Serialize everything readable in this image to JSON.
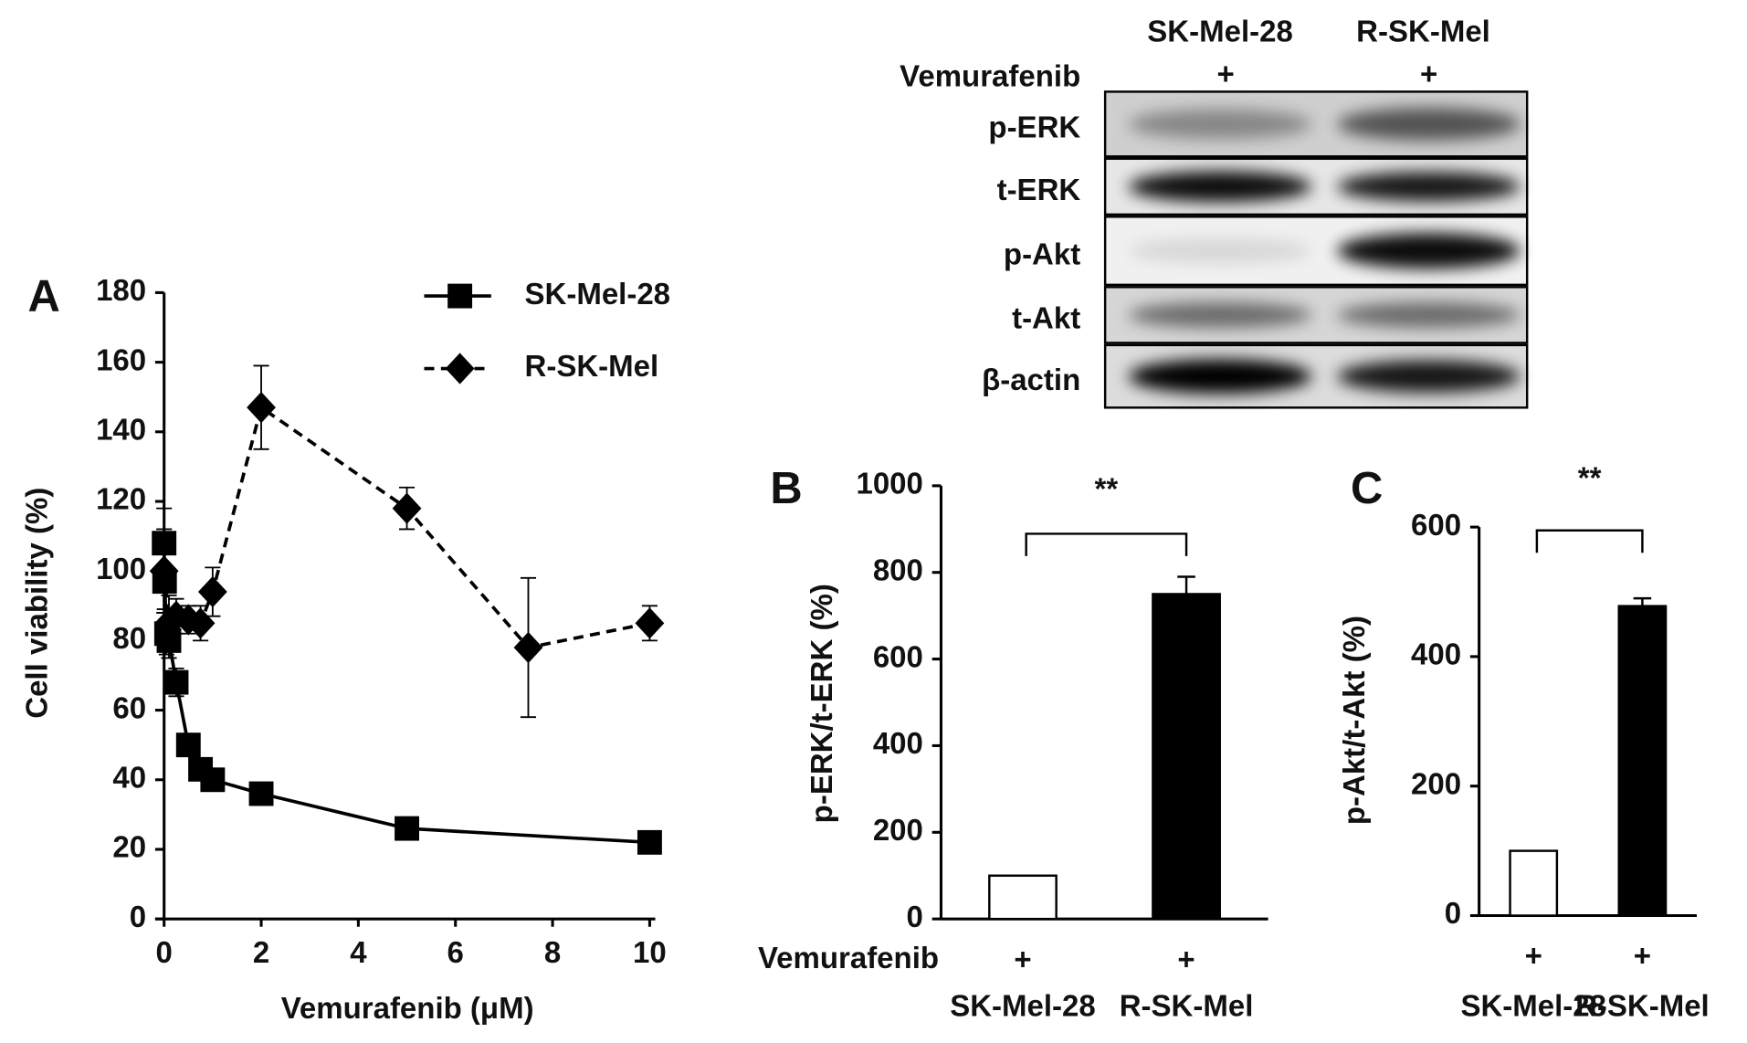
{
  "chart_data": [
    {
      "type": "line",
      "panel_label": "A",
      "xlabel": "Vemurafenib (μM)",
      "ylabel": "Cell viability (%)",
      "xlim": [
        0,
        10
      ],
      "xticks": [
        0,
        2,
        4,
        6,
        8,
        10
      ],
      "ylim": [
        0,
        180
      ],
      "yticks": [
        0,
        20,
        40,
        60,
        80,
        100,
        120,
        140,
        160,
        180
      ],
      "series": [
        {
          "name": "SK-Mel-28",
          "color": "#000000",
          "marker": "square",
          "linestyle": "solid",
          "x": [
            0,
            0.01,
            0.05,
            0.1,
            0.25,
            0.5,
            0.75,
            1,
            2,
            5,
            10
          ],
          "values": [
            108,
            97,
            82,
            80,
            68,
            50,
            43,
            40,
            36,
            26,
            22
          ],
          "errors": [
            10,
            8,
            6,
            5,
            4,
            3,
            3,
            3,
            2,
            2,
            2
          ]
        },
        {
          "name": "R-SK-Mel",
          "color": "#000000",
          "marker": "diamond",
          "linestyle": "dashed",
          "x": [
            0,
            0.1,
            0.25,
            0.5,
            0.75,
            1,
            2,
            5,
            7.5,
            10
          ],
          "values": [
            100,
            85,
            87,
            86,
            85,
            94,
            147,
            118,
            78,
            85
          ],
          "errors": [
            12,
            8,
            5,
            4,
            5,
            7,
            12,
            6,
            20,
            5
          ]
        }
      ]
    },
    {
      "type": "bar",
      "panel_label": "B",
      "ylabel": "p-ERK/t-ERK (%)",
      "annotation": "**",
      "treatment": "Vemurafenib",
      "treatment_marks": [
        "+",
        "+"
      ],
      "categories": [
        "SK-Mel-28",
        "R-SK-Mel"
      ],
      "values": [
        100,
        750
      ],
      "errors": [
        null,
        40
      ],
      "colors": [
        "#ffffff",
        "#000000"
      ],
      "ylim": [
        0,
        1000
      ],
      "yticks": [
        0,
        200,
        400,
        600,
        800,
        1000
      ]
    },
    {
      "type": "bar",
      "panel_label": "C",
      "ylabel": "p-Akt/t-Akt (%)",
      "annotation": "**",
      "treatment_marks": [
        "+",
        "+"
      ],
      "categories": [
        "SK-Mel-28",
        "R-SK-Mel"
      ],
      "values": [
        100,
        478
      ],
      "errors": [
        null,
        12
      ],
      "colors": [
        "#ffffff",
        "#000000"
      ],
      "ylim": [
        0,
        600
      ],
      "yticks": [
        0,
        200,
        400,
        600
      ]
    }
  ],
  "blot": {
    "column_headers": [
      "SK-Mel-28",
      "R-SK-Mel"
    ],
    "treatment": "Vemurafenib",
    "treatment_marks": [
      "+",
      "+"
    ],
    "rows": [
      "p-ERK",
      "t-ERK",
      "p-Akt",
      "t-Akt",
      "β-actin"
    ]
  }
}
